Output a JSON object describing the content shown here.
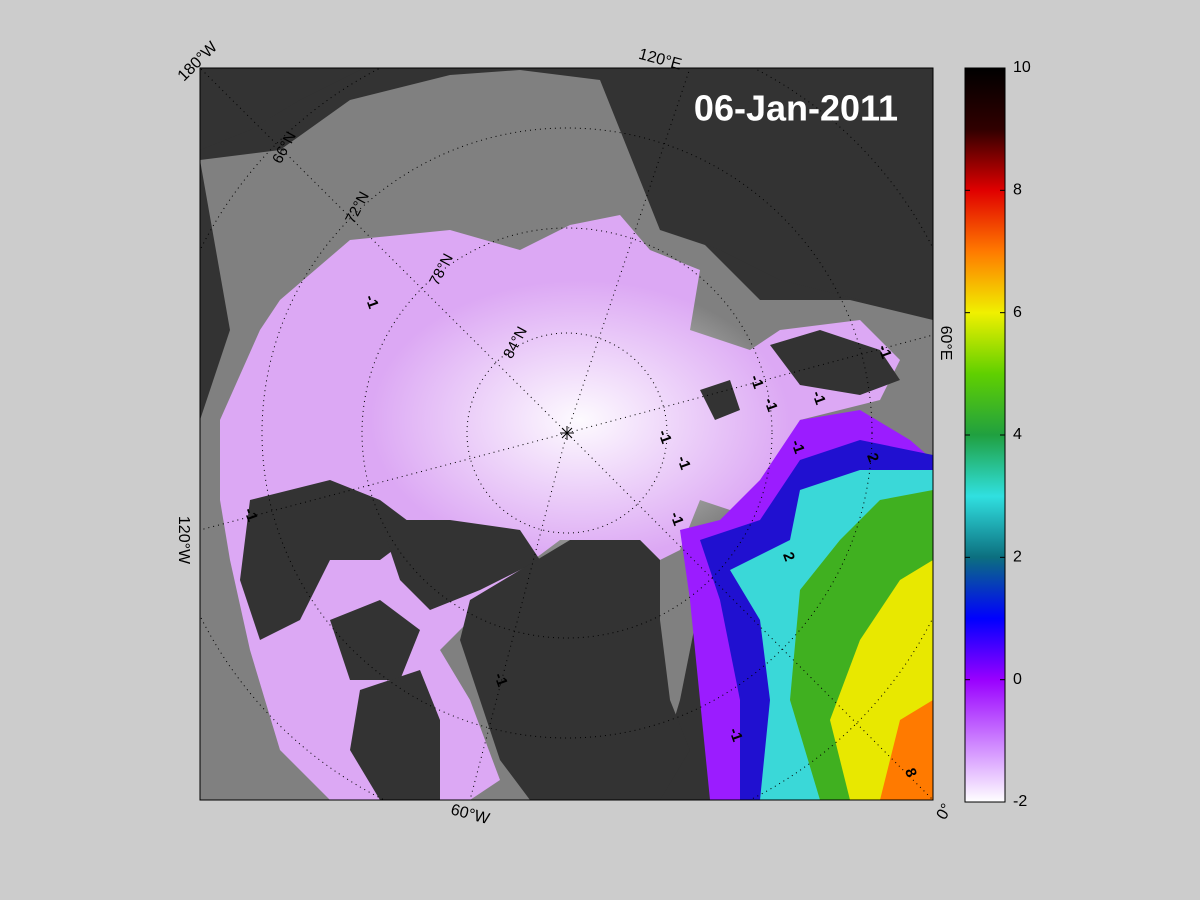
{
  "title": "06-Jan-2011",
  "longitude_labels": [
    "180°W",
    "120°E",
    "60°E",
    "0°",
    "60°W",
    "120°W"
  ],
  "latitude_labels": [
    "66°N",
    "72°N",
    "78°N",
    "84°N"
  ],
  "contour_labels": [
    -1,
    -1,
    -1,
    -1,
    -1,
    -1,
    -1,
    -1,
    -1,
    -1,
    -1,
    -1,
    2,
    2,
    8
  ],
  "colorbar": {
    "lim": [
      -2,
      10
    ],
    "ticks": [
      -2,
      0,
      2,
      4,
      6,
      8,
      10
    ],
    "colormap": [
      "#ffffff",
      "#cc80ff",
      "#9900ff",
      "#0000ff",
      "#0c6f7f",
      "#30e0e0",
      "#20a040",
      "#60d000",
      "#f0f000",
      "#ff7a00",
      "#e00000",
      "#300000",
      "#000000"
    ]
  }
}
